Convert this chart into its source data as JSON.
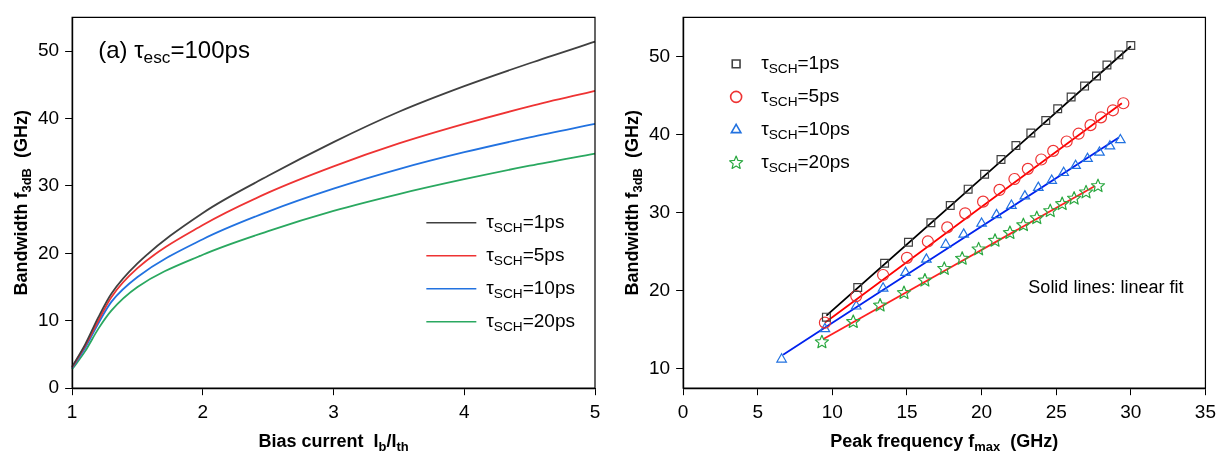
{
  "chart_data": [
    {
      "type": "line",
      "xlabel": "Bias current  I$_{b}$/I$_{th}$",
      "ylabel": "Bandwidth f$_{3dB}$  (GHz)",
      "annotations": [
        "(a) τ$_{esc}$=100ps"
      ],
      "x": [
        1,
        1.1,
        1.2,
        1.3,
        1.5,
        2,
        2.5,
        3,
        3.5,
        4,
        4.5,
        5
      ],
      "series": [
        {
          "name": "τ$_{SCH}$=1ps",
          "color": "#404040",
          "values": [
            3.2,
            6.5,
            10.5,
            14,
            18.5,
            26,
            31.5,
            36.5,
            41,
            44.8,
            48.2,
            51.4
          ]
        },
        {
          "name": "τ$_{SCH}$=5ps",
          "color": "#ee3333",
          "values": [
            3.1,
            6.3,
            10,
            13.5,
            17.8,
            24.2,
            29,
            32.9,
            36.3,
            39.2,
            41.8,
            44.1
          ]
        },
        {
          "name": "τ$_{SCH}$=10ps",
          "color": "#2272e0",
          "values": [
            3,
            6,
            9.6,
            12.8,
            16.5,
            22.1,
            26.2,
            29.6,
            32.5,
            35,
            37.2,
            39.2
          ]
        },
        {
          "name": "τ$_{SCH}$=20ps",
          "color": "#2aa860",
          "values": [
            2.8,
            5.5,
            8.8,
            11.5,
            15,
            19.8,
            23.3,
            26.3,
            28.8,
            31,
            33,
            34.8
          ]
        }
      ],
      "xlim": [
        1,
        5
      ],
      "xticks": [
        1,
        2,
        3,
        4,
        5
      ],
      "ylim": [
        0,
        55
      ],
      "yticks": [
        0,
        10,
        20,
        30,
        40,
        50
      ],
      "grid": false,
      "legend": "bottom right",
      "marker": "none",
      "line_style": "solid"
    },
    {
      "type": "scatter",
      "xlabel": "Peak frequency f$_{max}$  (GHz)",
      "ylabel": "Bandwidth f$_{3dB}$  (GHz)",
      "annotations": [
        "Solid lines: linear fit"
      ],
      "series": [
        {
          "name": "τ$_{SCH}$=1ps",
          "color": "#404040",
          "marker": "square",
          "x": [
            9.6,
            11.7,
            13.5,
            15.1,
            16.6,
            17.9,
            19.1,
            20.2,
            21.3,
            22.3,
            23.3,
            24.3,
            25.1,
            26,
            26.9,
            27.7,
            28.4,
            29.2,
            30
          ],
          "values": [
            16.6,
            20.4,
            23.5,
            26.2,
            28.7,
            30.9,
            33,
            34.9,
            36.8,
            38.6,
            40.2,
            41.8,
            43.3,
            44.8,
            46.2,
            47.5,
            48.9,
            50.2,
            51.4
          ]
        },
        {
          "name": "τ$_{SCH}$=5ps",
          "color": "#ee3333",
          "marker": "circle",
          "x": [
            9.5,
            11.6,
            13.4,
            15,
            16.4,
            17.7,
            18.9,
            20.1,
            21.2,
            22.2,
            23.1,
            24,
            24.8,
            25.7,
            26.5,
            27.3,
            28,
            28.8,
            29.5
          ],
          "values": [
            15.9,
            19.3,
            22,
            24.2,
            26.3,
            28.1,
            29.9,
            31.4,
            32.9,
            34.3,
            35.6,
            36.8,
            37.9,
            39.1,
            40.1,
            41.2,
            42.2,
            43.1,
            44
          ]
        },
        {
          "name": "τ$_{SCH}$=10ps",
          "color": "#2272e0",
          "marker": "triangle",
          "x": [
            6.6,
            9.5,
            11.6,
            13.4,
            14.9,
            16.3,
            17.6,
            18.8,
            20,
            21,
            22,
            22.9,
            23.8,
            24.7,
            25.5,
            26.3,
            27.1,
            27.9,
            28.6,
            29.3
          ],
          "values": [
            11.2,
            15.1,
            18,
            20.3,
            22.3,
            24,
            25.9,
            27.2,
            28.6,
            29.7,
            30.9,
            32.1,
            33.2,
            34.1,
            35.1,
            36,
            36.9,
            37.7,
            38.5,
            39.3
          ]
        },
        {
          "name": "τ$_{SCH}$=20ps",
          "color": "#2aa840",
          "marker": "star",
          "x": [
            9.3,
            11.4,
            13.2,
            14.8,
            16.2,
            17.5,
            18.7,
            19.8,
            20.9,
            21.9,
            22.8,
            23.7,
            24.6,
            25.4,
            26.2,
            27,
            27.8
          ],
          "values": [
            13.4,
            16,
            18.1,
            19.7,
            21.3,
            22.8,
            24.1,
            25.3,
            26.4,
            27.4,
            28.4,
            29.3,
            30.2,
            31.1,
            31.8,
            32.6,
            33.4
          ]
        },
        {
          "type": "line",
          "color": "#000000",
          "marker": "none",
          "x": [
            9.6,
            30
          ],
          "values": [
            16.8,
            51.3
          ]
        },
        {
          "type": "line",
          "color": "#ff0000",
          "marker": "none",
          "x": [
            9.5,
            29.4
          ],
          "values": [
            15.9,
            44
          ]
        },
        {
          "type": "line",
          "color": "#0022ee",
          "marker": "none",
          "x": [
            6.7,
            29.2
          ],
          "values": [
            11.8,
            39.6
          ]
        },
        {
          "type": "line",
          "color": "#ff2020",
          "marker": "none",
          "x": [
            9.4,
            27.6
          ],
          "values": [
            13.8,
            33.4
          ]
        }
      ],
      "xlim": [
        0,
        35
      ],
      "xticks": [
        0,
        5,
        10,
        15,
        20,
        25,
        30,
        35
      ],
      "ylim": [
        7.5,
        55
      ],
      "yticks": [
        10,
        20,
        30,
        40,
        50
      ],
      "grid": false,
      "legend": "top left",
      "line_style": "solid"
    }
  ]
}
